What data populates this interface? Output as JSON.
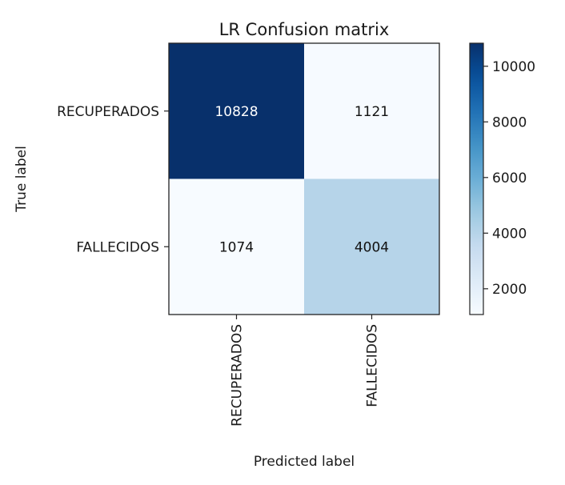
{
  "chart_data": {
    "type": "heatmap",
    "title": "LR Confusion matrix",
    "xlabel": "Predicted label",
    "ylabel": "True label",
    "x_categories": [
      "RECUPERADOS",
      "FALLECIDOS"
    ],
    "y_categories": [
      "RECUPERADOS",
      "FALLECIDOS"
    ],
    "values": [
      [
        10828,
        1121
      ],
      [
        1074,
        4004
      ]
    ],
    "colormap": "Blues",
    "color_range": [
      1074,
      10828
    ],
    "colorbar": {
      "ticks": [
        2000,
        4000,
        6000,
        8000,
        10000
      ],
      "tick_labels": [
        "2000",
        "4000",
        "6000",
        "8000",
        "10000"
      ]
    },
    "grid": false,
    "legend": "colorbar-right"
  }
}
